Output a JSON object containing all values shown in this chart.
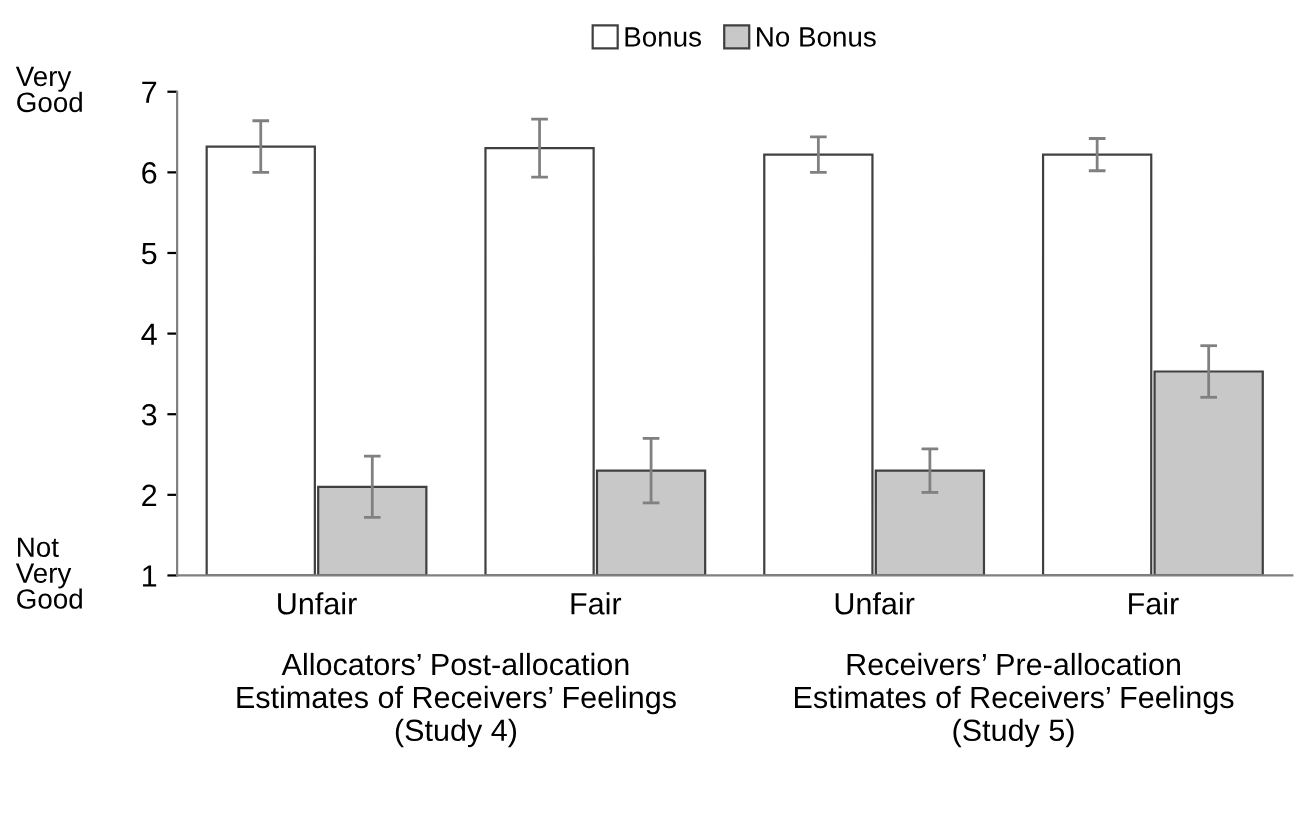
{
  "chart_data": {
    "type": "bar",
    "categories": [
      "Unfair",
      "Fair",
      "Unfair",
      "Fair"
    ],
    "series": [
      {
        "name": "Bonus",
        "color": "#ffffff",
        "values": [
          6.32,
          6.3,
          6.22,
          6.22
        ],
        "errors": [
          0.32,
          0.36,
          0.22,
          0.2
        ]
      },
      {
        "name": "No Bonus",
        "color": "#c8c8c8",
        "values": [
          2.1,
          2.3,
          2.3,
          3.53
        ],
        "errors": [
          0.38,
          0.4,
          0.27,
          0.32
        ]
      }
    ],
    "ylim": [
      1,
      7
    ],
    "yticks": [
      1,
      2,
      3,
      4,
      5,
      6,
      7
    ],
    "grid": false,
    "legend": "top",
    "annotations": [
      "Allocators’ Post-allocation\nEstimates of Receivers’ Feelings\n(Study 4)",
      "Receivers’ Pre-allocation\nEstimates of Receivers’ Feelings\n(Study 5)",
      "Very\nGood",
      "Not\nVery\nGood"
    ]
  }
}
